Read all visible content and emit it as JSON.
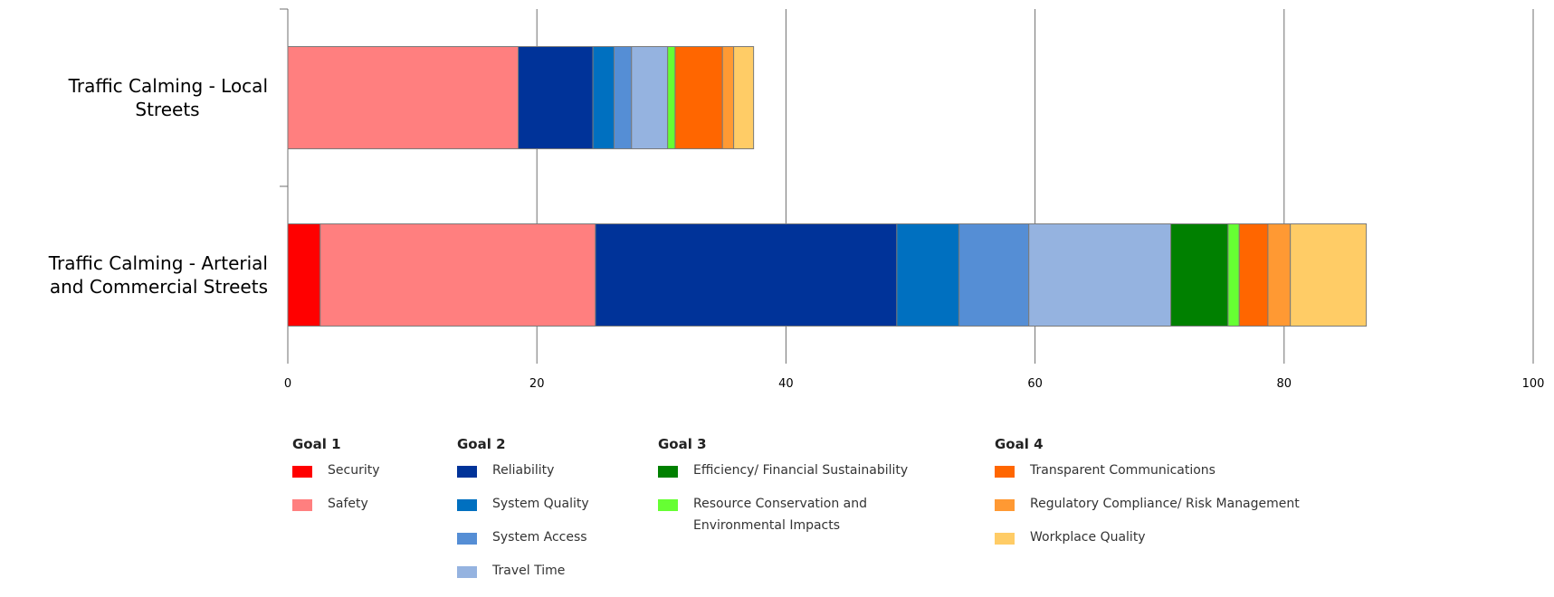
{
  "chart_data": {
    "type": "bar",
    "orientation": "horizontal",
    "stacked": true,
    "categories": [
      "Traffic Calming - Local Streets",
      "Traffic Calming - Arterial and Commercial Streets"
    ],
    "category_lines": [
      [
        "Traffic Calming - Local",
        "Streets"
      ],
      [
        "Traffic Calming - Arterial",
        "and Commercial Streets"
      ]
    ],
    "series": [
      {
        "name": "Security",
        "color": "#ff0000",
        "values": [
          0,
          2.6
        ]
      },
      {
        "name": "Safety",
        "color": "#ff7f7f",
        "values": [
          18.5,
          22.1
        ]
      },
      {
        "name": "Reliability",
        "color": "#003399",
        "values": [
          6.0,
          24.2
        ]
      },
      {
        "name": "System Quality",
        "color": "#0070c0",
        "values": [
          1.7,
          5.0
        ]
      },
      {
        "name": "System Access",
        "color": "#558ed5",
        "values": [
          1.4,
          5.6
        ]
      },
      {
        "name": "Travel Time",
        "color": "#95b3e0",
        "values": [
          2.9,
          11.4
        ]
      },
      {
        "name": "Efficiency/ Financial Sustainability",
        "color": "#008000",
        "values": [
          0,
          4.6
        ]
      },
      {
        "name": "Resource Conservation and Environmental Impacts",
        "color": "#66ff33",
        "values": [
          0.6,
          0.9
        ]
      },
      {
        "name": "Transparent Communications",
        "color": "#ff6600",
        "values": [
          3.8,
          2.3
        ]
      },
      {
        "name": "Regulatory Compliance/ Risk Management",
        "color": "#ff9933",
        "values": [
          0.9,
          1.8
        ]
      },
      {
        "name": "Workplace Quality",
        "color": "#ffcc66",
        "values": [
          1.6,
          6.1
        ]
      }
    ],
    "xlim": [
      0,
      100
    ],
    "xticks": [
      "0",
      "20",
      "40",
      "60",
      "80",
      "100"
    ],
    "grid": true,
    "legend_placement": "bottom"
  },
  "legend": {
    "groups": [
      {
        "title": "Goal 1",
        "items": [
          {
            "label": "Security",
            "color": "#ff0000"
          },
          {
            "label": "Safety",
            "color": "#ff7f7f"
          }
        ]
      },
      {
        "title": "Goal 2",
        "items": [
          {
            "label": "Reliability",
            "color": "#003399"
          },
          {
            "label": "System Quality",
            "color": "#0070c0"
          },
          {
            "label": "System Access",
            "color": "#558ed5"
          },
          {
            "label": "Travel Time",
            "color": "#95b3e0"
          }
        ]
      },
      {
        "title": "Goal 3",
        "items": [
          {
            "label": "Efficiency/ Financial Sustainability",
            "color": "#008000"
          },
          {
            "label_lines": [
              "Resource Conservation and",
              "Environmental Impacts"
            ],
            "color": "#66ff33"
          }
        ]
      },
      {
        "title": "Goal 4",
        "items": [
          {
            "label": "Transparent Communications",
            "color": "#ff6600"
          },
          {
            "label": "Regulatory Compliance/ Risk Management",
            "color": "#ff9933"
          },
          {
            "label": "Workplace Quality",
            "color": "#ffcc66"
          }
        ]
      }
    ]
  }
}
